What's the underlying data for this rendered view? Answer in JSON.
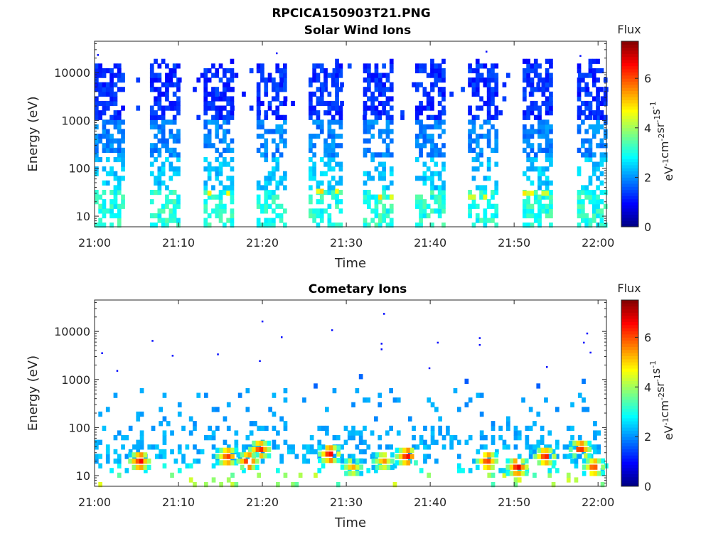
{
  "figure_title": "RPCICA150903T21.PNG",
  "chart_data": [
    {
      "type": "heatmap",
      "title": "Solar Wind Ions",
      "xlabel": "Time",
      "ylabel": "Energy (eV)",
      "x_ticks": [
        "21:00",
        "21:10",
        "21:20",
        "21:30",
        "21:40",
        "21:50",
        "22:00"
      ],
      "x_range_minutes": [
        0,
        61
      ],
      "y_scale": "log",
      "y_ticks": [
        "10",
        "100",
        "1000",
        "10000"
      ],
      "y_range": [
        6,
        45000
      ],
      "grid": false,
      "colorbar": {
        "label": "Flux",
        "unit": "eV^-1 cm^-2 sr^-1 s^-1",
        "ticks": [
          "0",
          "2",
          "4",
          "6"
        ],
        "range": [
          0,
          7.5
        ],
        "colormap": "jet"
      },
      "bursts": [
        {
          "start": 0.0,
          "end": 3.5,
          "hot_energy": null
        },
        {
          "start": 6.6,
          "end": 9.8,
          "hot_energy": null
        },
        {
          "start": 13.0,
          "end": 16.3,
          "hot_energy": 30
        },
        {
          "start": 19.3,
          "end": 22.7,
          "hot_energy": null
        },
        {
          "start": 25.5,
          "end": 29.2,
          "hot_energy": 33
        },
        {
          "start": 32.0,
          "end": 35.5,
          "hot_energy": 25
        },
        {
          "start": 38.2,
          "end": 41.5,
          "hot_energy": null
        },
        {
          "start": 44.5,
          "end": 48.0,
          "hot_energy": 25
        },
        {
          "start": 51.0,
          "end": 54.5,
          "hot_energy": 30
        },
        {
          "start": 57.5,
          "end": 61.0,
          "hot_energy": null
        }
      ],
      "sparse_counts": [
        {
          "time": 21.6,
          "energy": 25000
        },
        {
          "time": 46.6,
          "energy": 27000
        },
        {
          "time": 57.8,
          "energy": 22000
        },
        {
          "time": 0.3,
          "energy": 23000
        }
      ]
    },
    {
      "type": "heatmap",
      "title": "Cometary Ions",
      "xlabel": "Time",
      "ylabel": "Energy (eV)",
      "x_ticks": [
        "21:00",
        "21:10",
        "21:20",
        "21:30",
        "21:40",
        "21:50",
        "22:00"
      ],
      "x_range_minutes": [
        0,
        61
      ],
      "y_scale": "log",
      "y_ticks": [
        "10",
        "100",
        "1000",
        "10000"
      ],
      "y_range": [
        6,
        45000
      ],
      "grid": false,
      "colorbar": {
        "label": "Flux",
        "unit": "eV^-1 cm^-2 sr^-1 s^-1",
        "ticks": [
          "0",
          "2",
          "4",
          "6"
        ],
        "range": [
          0,
          7.5
        ],
        "colormap": "jet"
      },
      "hot_spots": [
        {
          "time": 5.2,
          "energy": 20,
          "value": 6.8
        },
        {
          "time": 15.6,
          "energy": 25,
          "value": 6.5
        },
        {
          "time": 18.1,
          "energy": 20,
          "value": 6.8
        },
        {
          "time": 19.5,
          "energy": 35,
          "value": 6.6
        },
        {
          "time": 27.8,
          "energy": 28,
          "value": 6.9
        },
        {
          "time": 30.5,
          "energy": 15,
          "value": 5.5
        },
        {
          "time": 34.2,
          "energy": 20,
          "value": 5.8
        },
        {
          "time": 37.0,
          "energy": 25,
          "value": 6.9
        },
        {
          "time": 46.6,
          "energy": 20,
          "value": 6.6
        },
        {
          "time": 50.2,
          "energy": 15,
          "value": 7.0
        },
        {
          "time": 53.5,
          "energy": 25,
          "value": 6.5
        },
        {
          "time": 57.7,
          "energy": 35,
          "value": 6.7
        },
        {
          "time": 59.3,
          "energy": 15,
          "value": 6.4
        }
      ],
      "sparse_counts": [
        {
          "time": 0.8,
          "energy": 3500
        },
        {
          "time": 6.8,
          "energy": 6300
        },
        {
          "time": 9.2,
          "energy": 3100
        },
        {
          "time": 14.6,
          "energy": 3300
        },
        {
          "time": 19.9,
          "energy": 16000
        },
        {
          "time": 22.2,
          "energy": 7500
        },
        {
          "time": 19.6,
          "energy": 2400
        },
        {
          "time": 28.2,
          "energy": 10500
        },
        {
          "time": 34.4,
          "energy": 23000
        },
        {
          "time": 34.1,
          "energy": 5500
        },
        {
          "time": 34.1,
          "energy": 4200
        },
        {
          "time": 40.8,
          "energy": 5800
        },
        {
          "time": 45.8,
          "energy": 7200
        },
        {
          "time": 45.8,
          "energy": 5200
        },
        {
          "time": 53.8,
          "energy": 1800
        },
        {
          "time": 58.6,
          "energy": 9000
        },
        {
          "time": 58.2,
          "energy": 5800
        },
        {
          "time": 59.0,
          "energy": 3600
        },
        {
          "time": 39.8,
          "energy": 1700
        },
        {
          "time": 2.6,
          "energy": 1500
        }
      ]
    }
  ]
}
